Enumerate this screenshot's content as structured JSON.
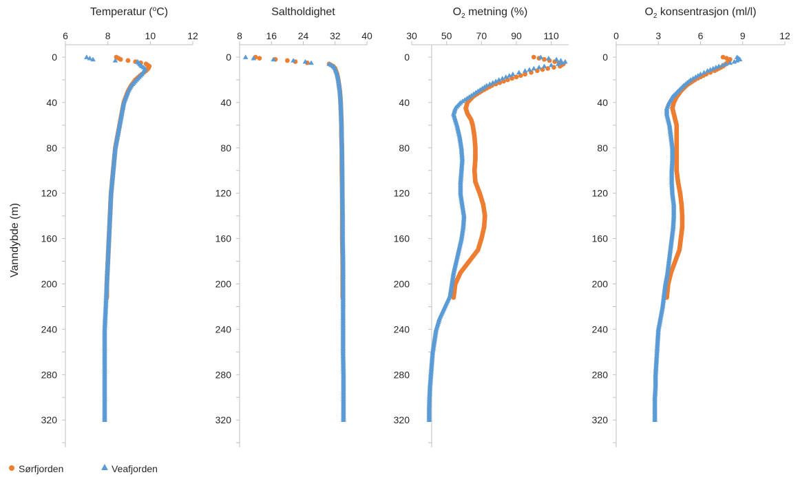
{
  "figure": {
    "ylabel": "Vanndybde (m)",
    "yticks": [
      "0",
      "40",
      "80",
      "120",
      "160",
      "200",
      "240",
      "280",
      "320"
    ],
    "yticks_panel3": [
      "0",
      "40",
      "80",
      "120",
      "160",
      "200",
      "240",
      "280",
      "320"
    ],
    "legend": [
      {
        "label": "Sørfjorden",
        "marker": "circle",
        "color": "#ED7D31"
      },
      {
        "label": "Veafjorden",
        "marker": "triangle",
        "color": "#5B9BD5"
      }
    ]
  },
  "chart_data": [
    {
      "type": "scatter",
      "title": "Temperatur (°C)",
      "title_parts": {
        "pre": "Temperatur (",
        "sup": "o",
        "post": "C)"
      },
      "xlim": [
        6,
        12
      ],
      "xticks": [
        "6",
        "8",
        "10",
        "12"
      ],
      "ylim": [
        0,
        340
      ],
      "y_inverted": true,
      "series": [
        {
          "name": "Sørfjorden",
          "color": "#ED7D31",
          "marker": "circle",
          "y": [
            0,
            2,
            4,
            6,
            8,
            10,
            12,
            15,
            20,
            25,
            30,
            35,
            40,
            45,
            50,
            55,
            60,
            70,
            80,
            90,
            100,
            120,
            140,
            160,
            180,
            200,
            212
          ],
          "x": [
            8.4,
            8.6,
            9.3,
            9.8,
            9.95,
            9.9,
            9.8,
            9.6,
            9.3,
            9.1,
            8.95,
            8.85,
            8.75,
            8.7,
            8.65,
            8.6,
            8.55,
            8.45,
            8.35,
            8.3,
            8.25,
            8.15,
            8.1,
            8.05,
            8.0,
            7.95,
            7.95
          ]
        },
        {
          "name": "Veafjorden",
          "color": "#5B9BD5",
          "marker": "triangle",
          "y": [
            0,
            2,
            4,
            6,
            8,
            10,
            12,
            15,
            20,
            25,
            30,
            35,
            40,
            45,
            50,
            55,
            60,
            70,
            80,
            90,
            100,
            120,
            140,
            160,
            180,
            200,
            220,
            240,
            260,
            280,
            300,
            320
          ],
          "x": [
            7.0,
            7.3,
            9.4,
            9.5,
            9.6,
            9.75,
            9.7,
            9.6,
            9.35,
            9.1,
            8.95,
            8.85,
            8.75,
            8.7,
            8.65,
            8.6,
            8.55,
            8.45,
            8.35,
            8.3,
            8.25,
            8.15,
            8.1,
            8.05,
            8.0,
            7.95,
            7.9,
            7.85,
            7.85,
            7.85,
            7.85,
            7.85
          ]
        }
      ]
    },
    {
      "type": "scatter",
      "title": "Saltholdighet",
      "xlim": [
        8,
        40
      ],
      "xticks": [
        "8",
        "16",
        "24",
        "32",
        "40"
      ],
      "ylim": [
        0,
        340
      ],
      "y_inverted": true,
      "series": [
        {
          "name": "Sørfjorden",
          "color": "#ED7D31",
          "marker": "circle",
          "y": [
            0,
            1,
            2,
            3,
            4,
            5,
            6,
            8,
            10,
            15,
            20,
            25,
            30,
            40,
            50,
            60,
            70,
            80,
            100,
            120,
            140,
            160,
            180,
            200,
            212
          ],
          "x": [
            12,
            13,
            17,
            20,
            22,
            25,
            30.5,
            31.5,
            32,
            32.5,
            32.8,
            33,
            33.2,
            33.4,
            33.5,
            33.6,
            33.6,
            33.7,
            33.7,
            33.8,
            33.8,
            33.8,
            33.9,
            33.9,
            33.9
          ]
        },
        {
          "name": "Veafjorden",
          "color": "#5B9BD5",
          "marker": "triangle",
          "y": [
            0,
            1,
            2,
            3,
            4,
            5,
            6,
            8,
            10,
            15,
            20,
            25,
            30,
            40,
            50,
            60,
            80,
            100,
            120,
            140,
            160,
            180,
            200,
            220,
            240,
            260,
            280,
            300,
            320
          ],
          "x": [
            9.5,
            11.5,
            16.5,
            21.5,
            24.5,
            26,
            30.5,
            31.5,
            32,
            32.5,
            32.8,
            33,
            33.2,
            33.4,
            33.5,
            33.6,
            33.7,
            33.8,
            33.8,
            33.9,
            33.9,
            34,
            34,
            34,
            34,
            34,
            34.1,
            34.1,
            34.1
          ]
        }
      ]
    },
    {
      "type": "scatter",
      "title": "O₂ metning (%)",
      "title_parts": {
        "pre": "O",
        "sub": "2",
        "post": " metning (%)"
      },
      "xlim": [
        30,
        120
      ],
      "xticks": [
        "30",
        "50",
        "70",
        "90",
        "110"
      ],
      "ylim": [
        0,
        340
      ],
      "y_inverted": true,
      "series": [
        {
          "name": "Sørfjorden",
          "color": "#ED7D31",
          "marker": "circle",
          "y": [
            0,
            2,
            4,
            6,
            8,
            10,
            12,
            15,
            20,
            25,
            30,
            35,
            40,
            45,
            50,
            55,
            60,
            70,
            80,
            90,
            100,
            110,
            120,
            130,
            140,
            150,
            160,
            170,
            180,
            190,
            200,
            212
          ],
          "x": [
            100,
            106,
            112,
            117,
            115,
            108,
            102,
            95,
            85,
            76,
            70,
            65,
            62,
            61,
            62,
            64,
            65,
            66,
            66.5,
            66.5,
            66,
            66.5,
            69,
            71,
            72,
            71.5,
            70,
            68,
            63,
            58,
            55,
            54
          ]
        },
        {
          "name": "Veafjorden",
          "color": "#5B9BD5",
          "marker": "triangle",
          "y": [
            0,
            2,
            4,
            6,
            8,
            10,
            12,
            15,
            20,
            25,
            30,
            35,
            40,
            45,
            50,
            55,
            60,
            70,
            80,
            90,
            100,
            110,
            120,
            130,
            140,
            150,
            160,
            170,
            180,
            190,
            200,
            210,
            220,
            230,
            240,
            250,
            260,
            270,
            280,
            290,
            300,
            310,
            320
          ],
          "x": [
            104,
            113,
            118,
            114,
            106,
            100,
            95,
            88,
            80,
            73,
            68,
            63,
            58,
            55,
            54,
            55,
            56,
            57.5,
            58.5,
            59,
            58.5,
            58,
            58,
            59,
            60,
            59.5,
            58.5,
            57,
            55.5,
            54,
            53,
            52,
            49,
            46,
            44,
            43,
            42,
            41.5,
            41,
            40.5,
            40.2,
            40,
            40
          ]
        }
      ]
    },
    {
      "type": "scatter",
      "title": "O₂ konsentrasjon (ml/l)",
      "title_parts": {
        "pre": "O",
        "sub": "2",
        "post": " konsentrasjon (ml/l)"
      },
      "xlim": [
        0,
        12
      ],
      "xticks": [
        "0",
        "3",
        "6",
        "9",
        "12"
      ],
      "ylim": [
        0,
        340
      ],
      "y_inverted": true,
      "series": [
        {
          "name": "Sørfjorden",
          "color": "#ED7D31",
          "marker": "circle",
          "y": [
            0,
            2,
            4,
            6,
            8,
            10,
            12,
            15,
            20,
            25,
            30,
            35,
            40,
            45,
            50,
            55,
            60,
            70,
            80,
            90,
            100,
            110,
            120,
            130,
            140,
            150,
            160,
            170,
            180,
            190,
            200,
            212
          ],
          "x": [
            7.6,
            8.1,
            8.0,
            7.8,
            7.6,
            7.3,
            7.0,
            6.4,
            5.6,
            5.0,
            4.6,
            4.3,
            4.1,
            4.0,
            4.1,
            4.2,
            4.3,
            4.3,
            4.3,
            4.3,
            4.3,
            4.4,
            4.55,
            4.65,
            4.7,
            4.7,
            4.6,
            4.5,
            4.2,
            3.9,
            3.7,
            3.6
          ]
        },
        {
          "name": "Veafjorden",
          "color": "#5B9BD5",
          "marker": "triangle",
          "y": [
            0,
            2,
            4,
            6,
            8,
            10,
            12,
            15,
            20,
            25,
            30,
            35,
            40,
            45,
            50,
            55,
            60,
            70,
            80,
            90,
            100,
            110,
            120,
            130,
            140,
            150,
            160,
            170,
            180,
            190,
            200,
            210,
            220,
            230,
            240,
            250,
            260,
            270,
            280,
            290,
            300,
            310,
            320
          ],
          "x": [
            8.6,
            8.8,
            8.4,
            7.8,
            7.3,
            6.9,
            6.5,
            6.0,
            5.3,
            4.8,
            4.4,
            4.0,
            3.75,
            3.6,
            3.6,
            3.7,
            3.8,
            3.9,
            4.0,
            4.0,
            3.95,
            3.95,
            4.0,
            4.1,
            4.1,
            4.05,
            3.95,
            3.85,
            3.75,
            3.65,
            3.5,
            3.4,
            3.3,
            3.15,
            3.0,
            2.95,
            2.9,
            2.85,
            2.8,
            2.8,
            2.75,
            2.75,
            2.75
          ]
        }
      ]
    }
  ]
}
